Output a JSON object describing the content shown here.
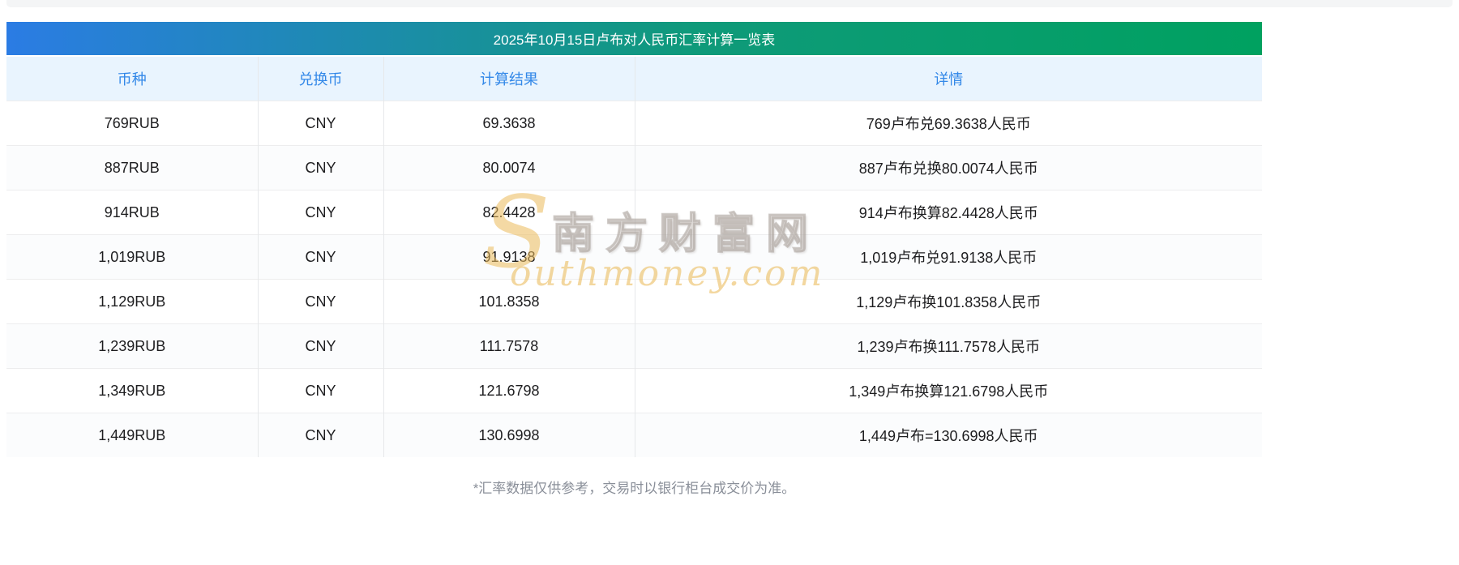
{
  "page": {
    "title": "2025年10月15日卢布对人民币汇率计算一览表",
    "footnote": "*汇率数据仅供参考，交易时以银行柜台成交价为准。"
  },
  "chart_data": {
    "type": "table",
    "title": "2025年10月15日卢布对人民币汇率计算一览表",
    "columns": [
      "币种",
      "兑换币",
      "计算结果",
      "详情"
    ],
    "rows": [
      [
        "769RUB",
        "CNY",
        "69.3638",
        "769卢布兑69.3638人民币"
      ],
      [
        "887RUB",
        "CNY",
        "80.0074",
        "887卢布兑换80.0074人民币"
      ],
      [
        "914RUB",
        "CNY",
        "82.4428",
        "914卢布换算82.4428人民币"
      ],
      [
        "1,019RUB",
        "CNY",
        "91.9138",
        "1,019卢布兑91.9138人民币"
      ],
      [
        "1,129RUB",
        "CNY",
        "101.8358",
        "1,129卢布换101.8358人民币"
      ],
      [
        "1,239RUB",
        "CNY",
        "111.7578",
        "1,239卢布换111.7578人民币"
      ],
      [
        "1,349RUB",
        "CNY",
        "121.6798",
        "1,349卢布换算121.6798人民币"
      ],
      [
        "1,449RUB",
        "CNY",
        "130.6998",
        "1,449卢布=130.6998人民币"
      ]
    ]
  },
  "watermark": {
    "initial": "S",
    "cn": "南方财富网",
    "en": "outhmoney.com"
  },
  "colors": {
    "title_gradient_left": "#2B7CE4",
    "title_gradient_right": "#00A160",
    "header_bg": "#E9F4FE",
    "header_text": "#3388E8",
    "body_text": "#1D1D1F",
    "footnote_text": "#8A8F99",
    "watermark_gold": "#E8B95E",
    "watermark_gray": "#B9B2AC"
  }
}
